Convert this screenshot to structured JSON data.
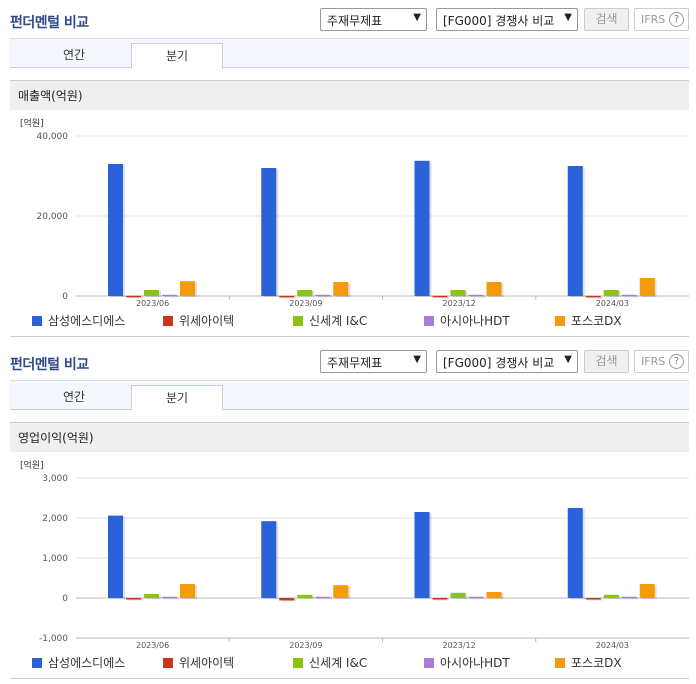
{
  "sections": [
    {
      "title": "펀더멘털 비교",
      "select1": "주재무제표",
      "select2": "[FG000] 경쟁사 비교",
      "search_label": "검색",
      "ifrs_label": "IFRS",
      "tabs": [
        "연간",
        "분기"
      ],
      "active_tab": "분기",
      "subtitle": "매출액(억원)"
    },
    {
      "title": "펀더멘털 비교",
      "select1": "주재무제표",
      "select2": "[FG000] 경쟁사 비교",
      "search_label": "검색",
      "ifrs_label": "IFRS",
      "tabs": [
        "연간",
        "분기"
      ],
      "active_tab": "분기",
      "subtitle": "영업이익(억원)"
    }
  ],
  "legend": [
    {
      "name": "삼성에스디에스",
      "color": "#2b62d9"
    },
    {
      "name": "위세아이텍",
      "color": "#c9361c"
    },
    {
      "name": "신세계 I&C",
      "color": "#8cc414"
    },
    {
      "name": "아시아나HDT",
      "color": "#a77bd6"
    },
    {
      "name": "포스코DX",
      "color": "#f59a0c"
    }
  ],
  "chart_data": [
    {
      "type": "bar",
      "unit_label": "[억원]",
      "categories": [
        "2023/06",
        "2023/09",
        "2023/12",
        "2024/03"
      ],
      "ylim": [
        0,
        40000
      ],
      "yticks": [
        "40,000",
        "20,000",
        "0"
      ],
      "ytick_values": [
        40000,
        20000,
        0
      ],
      "series": [
        {
          "name": "삼성에스디에스",
          "values": [
            33000,
            32000,
            33800,
            32500
          ]
        },
        {
          "name": "위세아이텍",
          "values": [
            50,
            40,
            60,
            40
          ]
        },
        {
          "name": "신세계 I&C",
          "values": [
            1500,
            1500,
            1500,
            1500
          ]
        },
        {
          "name": "아시아나HDT",
          "values": [
            300,
            300,
            300,
            300
          ]
        },
        {
          "name": "포스코DX",
          "values": [
            3700,
            3500,
            3500,
            4500
          ]
        }
      ]
    },
    {
      "type": "bar",
      "unit_label": "[억원]",
      "categories": [
        "2023/06",
        "2023/09",
        "2023/12",
        "2024/03"
      ],
      "ylim": [
        -1000,
        3000
      ],
      "yticks": [
        "3,000",
        "2,000",
        "1,000",
        "0",
        "-1,000"
      ],
      "ytick_values": [
        3000,
        2000,
        1000,
        0,
        -1000
      ],
      "series": [
        {
          "name": "삼성에스디에스",
          "values": [
            2060,
            1920,
            2150,
            2250
          ]
        },
        {
          "name": "위세아이텍",
          "values": [
            -10,
            -60,
            -10,
            -20
          ]
        },
        {
          "name": "신세계 I&C",
          "values": [
            100,
            80,
            130,
            80
          ]
        },
        {
          "name": "아시아나HDT",
          "values": [
            30,
            30,
            30,
            30
          ]
        },
        {
          "name": "포스코DX",
          "values": [
            350,
            320,
            150,
            350
          ]
        }
      ]
    }
  ]
}
